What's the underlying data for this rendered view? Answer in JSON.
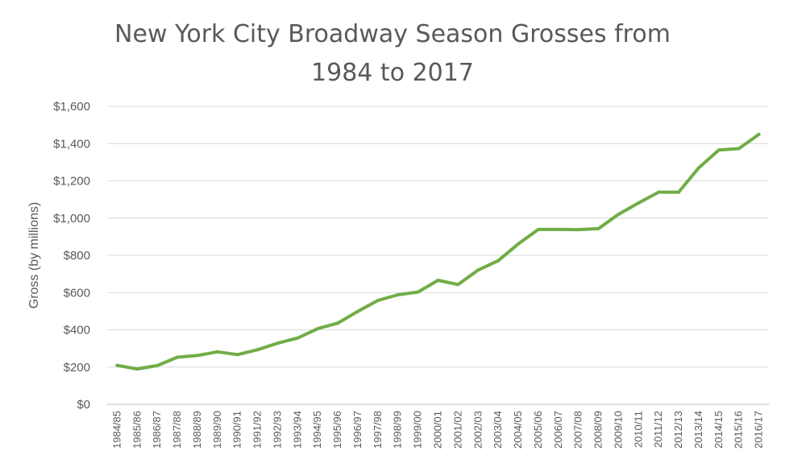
{
  "chart_data": {
    "type": "line",
    "title": [
      "New York City Broadway Season Grosses from",
      "1984 to 2017"
    ],
    "xlabel": "",
    "ylabel": "Gross (by millions)",
    "ylim": [
      0,
      1600
    ],
    "y_ticks": [
      "$0",
      "$200",
      "$400",
      "$600",
      "$800",
      "$1,000",
      "$1,200",
      "$1,400",
      "$1,600"
    ],
    "grid": true,
    "legend": "none",
    "categories": [
      "1984/85",
      "1985/86",
      "1986/87",
      "1987/88",
      "1988/89",
      "1989/90",
      "1990/91",
      "1991/92",
      "1992/93",
      "1993/94",
      "1994/95",
      "1995/96",
      "1996/97",
      "1997/98",
      "1998/99",
      "1999/00",
      "2000/01",
      "2001/02",
      "2002/03",
      "2003/04",
      "2004/05",
      "2005/06",
      "2006/07",
      "2007/08",
      "2008/09",
      "2009/10",
      "2010/11",
      "2011/12",
      "2012/13",
      "2013/14",
      "2014/15",
      "2015/16",
      "2016/17"
    ],
    "series": [
      {
        "color": "#70ad47",
        "values": [
          209,
          190,
          208,
          253,
          262,
          282,
          267,
          293,
          328,
          356,
          406,
          436,
          499,
          558,
          588,
          603,
          666,
          643,
          721,
          771,
          861,
          939,
          939,
          938,
          943,
          1020,
          1081,
          1139,
          1139,
          1269,
          1365,
          1373,
          1449
        ]
      }
    ]
  }
}
